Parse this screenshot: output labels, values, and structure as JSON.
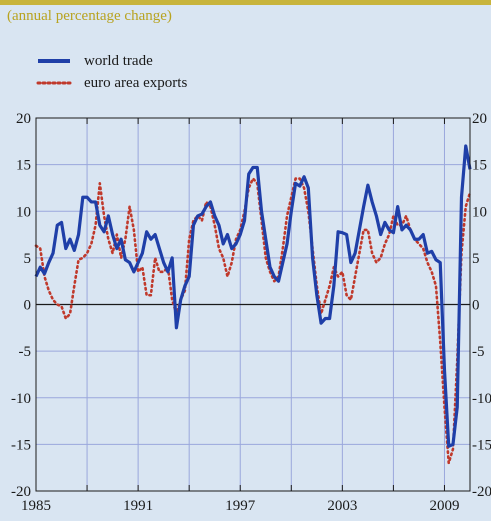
{
  "chart_data": {
    "type": "line",
    "subtitle": "(annual percentage change)",
    "x_tick_labels": [
      "1985",
      "1991",
      "1997",
      "2003",
      "2009"
    ],
    "x_ticks": [
      1985,
      1988,
      1991,
      1994,
      1997,
      2000,
      2003,
      2006,
      2009
    ],
    "xlim": [
      1985,
      2010.5
    ],
    "ylim": [
      -20,
      20
    ],
    "y_ticks": [
      20,
      15,
      10,
      5,
      0,
      -5,
      -10,
      -15,
      -20
    ],
    "grid": true,
    "legend_position": "top-left",
    "series": [
      {
        "name": "world trade",
        "style": "solid",
        "color": "#1f3fa8",
        "points": [
          [
            1985.0,
            3.0
          ],
          [
            1985.25,
            4.0
          ],
          [
            1985.5,
            3.3
          ],
          [
            1985.75,
            4.5
          ],
          [
            1986.0,
            5.5
          ],
          [
            1986.25,
            8.5
          ],
          [
            1986.5,
            8.8
          ],
          [
            1986.75,
            6.0
          ],
          [
            1987.0,
            7.0
          ],
          [
            1987.25,
            5.8
          ],
          [
            1987.5,
            7.5
          ],
          [
            1987.75,
            11.5
          ],
          [
            1988.0,
            11.5
          ],
          [
            1988.25,
            11.0
          ],
          [
            1988.5,
            11.0
          ],
          [
            1988.75,
            8.5
          ],
          [
            1989.0,
            7.8
          ],
          [
            1989.25,
            9.5
          ],
          [
            1989.5,
            7.5
          ],
          [
            1989.75,
            6.0
          ],
          [
            1990.0,
            7.0
          ],
          [
            1990.25,
            4.8
          ],
          [
            1990.5,
            4.5
          ],
          [
            1990.75,
            3.5
          ],
          [
            1991.0,
            4.5
          ],
          [
            1991.25,
            5.5
          ],
          [
            1991.5,
            7.8
          ],
          [
            1991.75,
            7.0
          ],
          [
            1992.0,
            7.5
          ],
          [
            1992.25,
            6.0
          ],
          [
            1992.5,
            4.5
          ],
          [
            1992.75,
            3.5
          ],
          [
            1993.0,
            5.0
          ],
          [
            1993.25,
            -2.5
          ],
          [
            1993.5,
            0.5
          ],
          [
            1993.75,
            2.0
          ],
          [
            1994.0,
            3.0
          ],
          [
            1994.25,
            8.5
          ],
          [
            1994.5,
            9.5
          ],
          [
            1994.75,
            9.7
          ],
          [
            1995.0,
            10.5
          ],
          [
            1995.25,
            11.0
          ],
          [
            1995.5,
            9.5
          ],
          [
            1995.75,
            8.5
          ],
          [
            1996.0,
            6.5
          ],
          [
            1996.25,
            7.5
          ],
          [
            1996.5,
            6.0
          ],
          [
            1996.75,
            6.5
          ],
          [
            1997.0,
            7.5
          ],
          [
            1997.25,
            9.0
          ],
          [
            1997.5,
            14.0
          ],
          [
            1997.75,
            14.7
          ],
          [
            1998.0,
            14.7
          ],
          [
            1998.25,
            10.0
          ],
          [
            1998.5,
            7.0
          ],
          [
            1998.75,
            4.0
          ],
          [
            1999.0,
            3.0
          ],
          [
            1999.25,
            2.5
          ],
          [
            1999.5,
            4.5
          ],
          [
            1999.75,
            6.5
          ],
          [
            2000.0,
            10.0
          ],
          [
            2000.25,
            13.0
          ],
          [
            2000.5,
            12.7
          ],
          [
            2000.75,
            13.7
          ],
          [
            2001.0,
            12.5
          ],
          [
            2001.25,
            5.0
          ],
          [
            2001.5,
            1.0
          ],
          [
            2001.75,
            -2.0
          ],
          [
            2002.0,
            -1.5
          ],
          [
            2002.25,
            -1.5
          ],
          [
            2002.5,
            2.0
          ],
          [
            2002.75,
            7.8
          ],
          [
            2003.0,
            7.7
          ],
          [
            2003.25,
            7.5
          ],
          [
            2003.5,
            4.5
          ],
          [
            2003.75,
            5.5
          ],
          [
            2004.0,
            8.0
          ],
          [
            2004.25,
            10.5
          ],
          [
            2004.5,
            12.8
          ],
          [
            2004.75,
            11.0
          ],
          [
            2005.0,
            9.5
          ],
          [
            2005.25,
            7.5
          ],
          [
            2005.5,
            8.8
          ],
          [
            2005.75,
            8.0
          ],
          [
            2006.0,
            7.7
          ],
          [
            2006.25,
            10.5
          ],
          [
            2006.5,
            8.0
          ],
          [
            2006.75,
            8.5
          ],
          [
            2007.0,
            8.0
          ],
          [
            2007.25,
            7.0
          ],
          [
            2007.5,
            7.0
          ],
          [
            2007.75,
            7.5
          ],
          [
            2008.0,
            5.5
          ],
          [
            2008.25,
            5.7
          ],
          [
            2008.5,
            4.8
          ],
          [
            2008.75,
            4.5
          ],
          [
            2009.0,
            -7.0
          ],
          [
            2009.25,
            -15.2
          ],
          [
            2009.5,
            -15.0
          ],
          [
            2009.75,
            -11.0
          ],
          [
            2010.0,
            11.5
          ],
          [
            2010.25,
            17.0
          ],
          [
            2010.5,
            14.5
          ]
        ]
      },
      {
        "name": "euro area exports",
        "style": "dotted",
        "color": "#c0392b",
        "points": [
          [
            1985.0,
            6.3
          ],
          [
            1985.25,
            6.0
          ],
          [
            1985.5,
            3.0
          ],
          [
            1985.75,
            1.5
          ],
          [
            1986.0,
            0.5
          ],
          [
            1986.25,
            0.0
          ],
          [
            1986.5,
            -0.2
          ],
          [
            1986.75,
            -1.5
          ],
          [
            1987.0,
            -1.0
          ],
          [
            1987.25,
            2.0
          ],
          [
            1987.5,
            4.8
          ],
          [
            1987.75,
            5.0
          ],
          [
            1988.0,
            5.5
          ],
          [
            1988.25,
            6.5
          ],
          [
            1988.5,
            8.5
          ],
          [
            1988.75,
            13.0
          ],
          [
            1989.0,
            9.5
          ],
          [
            1989.25,
            7.0
          ],
          [
            1989.5,
            5.5
          ],
          [
            1989.75,
            7.5
          ],
          [
            1990.0,
            5.0
          ],
          [
            1990.25,
            7.0
          ],
          [
            1990.5,
            10.5
          ],
          [
            1990.75,
            8.0
          ],
          [
            1991.0,
            3.5
          ],
          [
            1991.25,
            4.0
          ],
          [
            1991.5,
            1.0
          ],
          [
            1991.75,
            1.0
          ],
          [
            1992.0,
            5.0
          ],
          [
            1992.25,
            3.5
          ],
          [
            1992.5,
            3.5
          ],
          [
            1992.75,
            4.0
          ],
          [
            1993.0,
            0.5
          ],
          [
            1993.25,
            -1.0
          ],
          [
            1993.5,
            0.5
          ],
          [
            1993.75,
            1.5
          ],
          [
            1994.0,
            7.0
          ],
          [
            1994.25,
            9.0
          ],
          [
            1994.5,
            9.5
          ],
          [
            1994.75,
            9.0
          ],
          [
            1995.0,
            11.0
          ],
          [
            1995.25,
            10.5
          ],
          [
            1995.5,
            8.5
          ],
          [
            1995.75,
            6.0
          ],
          [
            1996.0,
            5.0
          ],
          [
            1996.25,
            3.0
          ],
          [
            1996.5,
            4.5
          ],
          [
            1996.75,
            7.0
          ],
          [
            1997.0,
            8.0
          ],
          [
            1997.25,
            10.0
          ],
          [
            1997.5,
            12.5
          ],
          [
            1997.75,
            13.5
          ],
          [
            1998.0,
            13.0
          ],
          [
            1998.25,
            9.0
          ],
          [
            1998.5,
            5.0
          ],
          [
            1998.75,
            3.5
          ],
          [
            1999.0,
            2.5
          ],
          [
            1999.25,
            3.0
          ],
          [
            1999.5,
            6.0
          ],
          [
            1999.75,
            9.5
          ],
          [
            2000.0,
            11.5
          ],
          [
            2000.25,
            13.5
          ],
          [
            2000.5,
            13.5
          ],
          [
            2000.75,
            12.5
          ],
          [
            2001.0,
            10.0
          ],
          [
            2001.25,
            6.0
          ],
          [
            2001.5,
            2.0
          ],
          [
            2001.75,
            -1.0
          ],
          [
            2002.0,
            0.5
          ],
          [
            2002.25,
            2.0
          ],
          [
            2002.5,
            4.0
          ],
          [
            2002.75,
            3.0
          ],
          [
            2003.0,
            3.5
          ],
          [
            2003.25,
            1.0
          ],
          [
            2003.5,
            0.5
          ],
          [
            2003.75,
            3.0
          ],
          [
            2004.0,
            5.5
          ],
          [
            2004.25,
            8.0
          ],
          [
            2004.5,
            8.0
          ],
          [
            2004.75,
            5.5
          ],
          [
            2005.0,
            4.5
          ],
          [
            2005.25,
            5.0
          ],
          [
            2005.5,
            6.5
          ],
          [
            2005.75,
            7.5
          ],
          [
            2006.0,
            9.5
          ],
          [
            2006.25,
            8.5
          ],
          [
            2006.5,
            8.5
          ],
          [
            2006.75,
            9.5
          ],
          [
            2007.0,
            8.0
          ],
          [
            2007.25,
            7.0
          ],
          [
            2007.5,
            6.5
          ],
          [
            2007.75,
            6.0
          ],
          [
            2008.0,
            4.5
          ],
          [
            2008.25,
            3.5
          ],
          [
            2008.5,
            2.0
          ],
          [
            2008.75,
            -4.0
          ],
          [
            2009.0,
            -11.0
          ],
          [
            2009.25,
            -17.0
          ],
          [
            2009.5,
            -15.5
          ],
          [
            2009.75,
            -6.0
          ],
          [
            2010.0,
            5.5
          ],
          [
            2010.25,
            10.5
          ],
          [
            2010.5,
            12.0
          ]
        ]
      }
    ]
  }
}
